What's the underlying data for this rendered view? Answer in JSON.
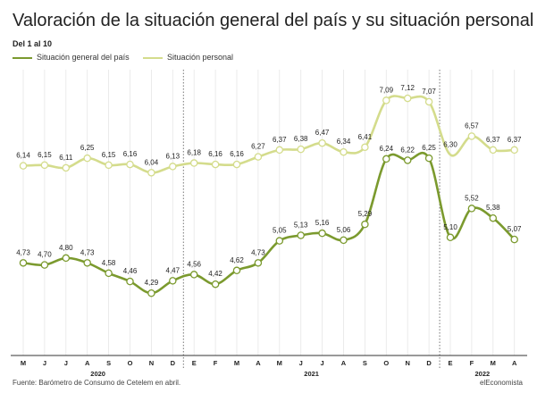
{
  "chart_data": {
    "type": "line",
    "title": "Valoración de la situación general del país y su situación personal",
    "subtitle": "Del 1 al 10",
    "categories": [
      "M",
      "J",
      "J",
      "A",
      "S",
      "O",
      "N",
      "D",
      "E",
      "F",
      "M",
      "A",
      "M",
      "J",
      "J",
      "A",
      "S",
      "O",
      "N",
      "D",
      "E",
      "F",
      "M",
      "A"
    ],
    "years": [
      {
        "label": "2020",
        "first_index": 0,
        "last_index": 7
      },
      {
        "label": "2021",
        "first_index": 8,
        "last_index": 19
      },
      {
        "label": "2022",
        "first_index": 20,
        "last_index": 23
      }
    ],
    "ylim": [
      3.8,
      7.4
    ],
    "series": [
      {
        "name": "Situación general del país",
        "color": "#7b9a2e",
        "values": [
          4.73,
          4.7,
          4.8,
          4.73,
          4.58,
          4.46,
          4.29,
          4.47,
          4.56,
          4.42,
          4.62,
          4.73,
          5.05,
          5.13,
          5.16,
          5.06,
          5.29,
          6.24,
          6.22,
          6.25,
          5.1,
          5.52,
          5.38,
          5.07
        ],
        "labels": [
          "4,73",
          "4,70",
          "4,80",
          "4,73",
          "4,58",
          "4,46",
          "4,29",
          "4,47",
          "4,56",
          "4,42",
          "4,62",
          "4,73",
          "5,05",
          "5,13",
          "5,16",
          "5,06",
          "5,29",
          "6,24",
          "6,22",
          "6,25",
          "5,10",
          "5,52",
          "5,38",
          "5,07"
        ],
        "markers": [
          0,
          1,
          2,
          3,
          4,
          5,
          6,
          7,
          8,
          9,
          10,
          11,
          12,
          13,
          14,
          15,
          16,
          17,
          18,
          19,
          20,
          21,
          22,
          23
        ]
      },
      {
        "name": "Situación personal",
        "color": "#d4dc8c",
        "values": [
          6.14,
          6.15,
          6.11,
          6.25,
          6.15,
          6.16,
          6.04,
          6.13,
          6.18,
          6.16,
          6.16,
          6.27,
          6.37,
          6.38,
          6.47,
          6.34,
          6.41,
          7.09,
          7.12,
          7.07,
          6.3,
          6.57,
          6.37,
          6.37
        ],
        "labels": [
          "6,14",
          "6,15",
          "6,11",
          "6,25",
          "6,15",
          "6,16",
          "6,04",
          "6,13",
          "6,18",
          "6,16",
          "6,16",
          "6,27",
          "6,37",
          "6,38",
          "6,47",
          "6,34",
          "6,41",
          "7,09",
          "7,12",
          "7,07",
          "6,30",
          "6,57",
          "6,37",
          "6,37"
        ],
        "markers": [
          0,
          1,
          2,
          3,
          4,
          5,
          6,
          7,
          8,
          9,
          10,
          11,
          12,
          13,
          14,
          15,
          16,
          17,
          18,
          19,
          21,
          22,
          23
        ]
      }
    ]
  },
  "footer": {
    "source": "Fuente: Barómetro de Consumo de Cetelem en abril.",
    "brand": "elEconomista"
  }
}
